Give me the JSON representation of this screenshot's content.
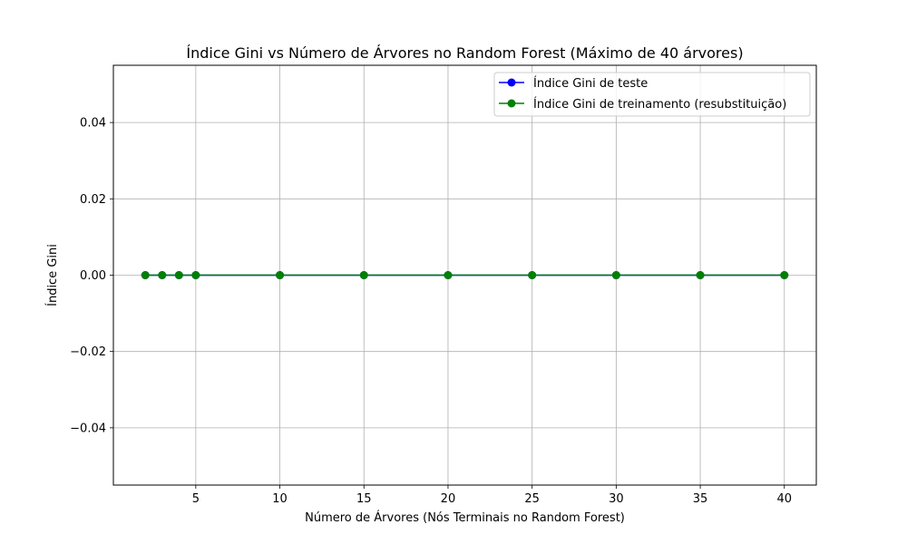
{
  "chart_data": {
    "type": "line",
    "title": "Índice Gini vs Número de Árvores no Random Forest (Máximo de 40 árvores)",
    "xlabel": "Número de Árvores (Nós Terminais no Random Forest)",
    "ylabel": "Índice Gini",
    "xlim": [
      0.1,
      41.9
    ],
    "ylim": [
      -0.055,
      0.055
    ],
    "x_ticks": [
      5,
      10,
      15,
      20,
      25,
      30,
      35,
      40
    ],
    "y_ticks": [
      -0.04,
      -0.02,
      0.0,
      0.02,
      0.04
    ],
    "x_tick_labels": [
      "5",
      "10",
      "15",
      "20",
      "25",
      "30",
      "35",
      "40"
    ],
    "y_tick_labels": [
      "−0.04",
      "−0.02",
      "0.00",
      "0.02",
      "0.04"
    ],
    "grid": true,
    "legend_position": "top-right",
    "x": [
      2,
      3,
      4,
      5,
      10,
      15,
      20,
      25,
      30,
      35,
      40
    ],
    "series": [
      {
        "name": "Índice Gini de teste",
        "color": "#0000ff",
        "values": [
          0,
          0,
          0,
          0,
          0,
          0,
          0,
          0,
          0,
          0,
          0
        ]
      },
      {
        "name": "Índice Gini de treinamento (resubstituição)",
        "color": "#008000",
        "values": [
          0,
          0,
          0,
          0,
          0,
          0,
          0,
          0,
          0,
          0,
          0
        ]
      }
    ]
  }
}
